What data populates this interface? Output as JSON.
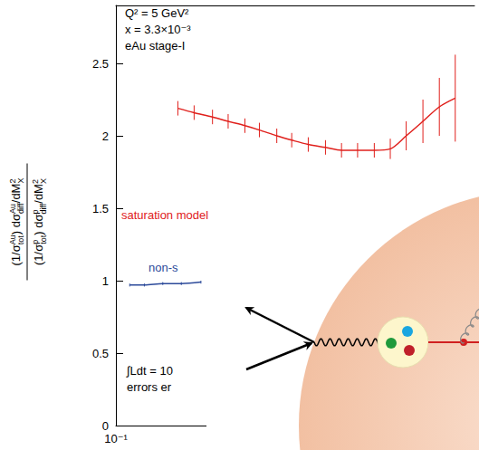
{
  "chart_data": {
    "type": "line",
    "annotations": [
      "Q² = 5 GeV²",
      "x = 3.3×10⁻³",
      "eAu stage-I",
      "∫Ldt = 10",
      "errors er"
    ],
    "ylabel": {
      "numerator": [
        {
          "text": "(1/σ",
          "sup": "Au",
          "sub": "tot"
        },
        {
          "text": ") dσ",
          "sup": "Au",
          "sub": "diff"
        },
        {
          "text": "/dM",
          "sup": "2",
          "sub": "X"
        }
      ],
      "denominator": [
        {
          "text": "(1/σ",
          "sup": "p",
          "sub": "tot"
        },
        {
          "text": ") dσ",
          "sup": "p",
          "sub": "diff"
        },
        {
          "text": "/dM",
          "sup": "2",
          "sub": "X"
        }
      ]
    },
    "log": "x",
    "xlim": [
      0.1,
      3
    ],
    "xticks": [
      {
        "value": 0.1,
        "label": "10⁻¹"
      }
    ],
    "ylim": [
      0,
      2.9
    ],
    "yticks": [
      0,
      0.5,
      1,
      1.5,
      2,
      2.5
    ],
    "grid": false,
    "series": [
      {
        "name": "saturation model",
        "color": "#e0201c",
        "line_style": "solid",
        "x": [
          0.18,
          0.21,
          0.25,
          0.29,
          0.34,
          0.39,
          0.46,
          0.53,
          0.62,
          0.73,
          0.85,
          0.99,
          1.16,
          1.35,
          1.57,
          1.84,
          2.15,
          2.5
        ],
        "values": [
          2.19,
          2.16,
          2.13,
          2.1,
          2.07,
          2.04,
          2.0,
          1.97,
          1.94,
          1.92,
          1.9,
          1.9,
          1.9,
          1.91,
          2.0,
          2.1,
          2.2,
          2.26
        ],
        "errors": [
          0.05,
          0.05,
          0.05,
          0.05,
          0.05,
          0.05,
          0.05,
          0.05,
          0.05,
          0.05,
          0.05,
          0.05,
          0.05,
          0.07,
          0.1,
          0.15,
          0.2,
          0.3
        ]
      },
      {
        "name": "non-s",
        "color": "#2c4a9a",
        "line_style": "solid",
        "x": [
          0.114,
          0.131,
          0.156,
          0.186,
          0.224
        ],
        "values": [
          0.97,
          0.97,
          0.98,
          0.98,
          0.99
        ],
        "errors": [
          0.01,
          0.01,
          0.01,
          0.01,
          0.01
        ]
      }
    ]
  }
}
